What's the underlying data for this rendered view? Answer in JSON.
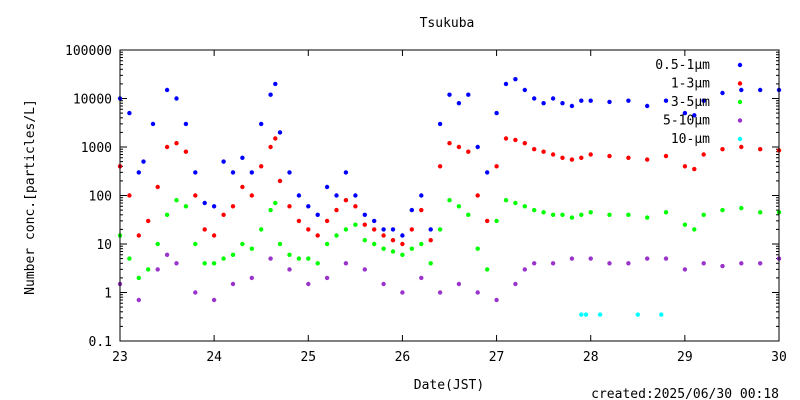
{
  "chart_data": {
    "type": "scatter",
    "title": "Tsukuba",
    "xlabel": "Date(JST)",
    "ylabel": "Number conc.[particles/L]",
    "xscale": "linear",
    "yscale": "log",
    "xlim": [
      23,
      30
    ],
    "ylim": [
      0.1,
      100000
    ],
    "x_ticks": [
      "23",
      "24",
      "25",
      "26",
      "27",
      "28",
      "29",
      "30"
    ],
    "y_ticks": [
      "0.1",
      "1",
      "10",
      "100",
      "1000",
      "10000",
      "100000"
    ],
    "legend_position": "top-right",
    "grid": false,
    "series": [
      {
        "name": "0.5-1μm",
        "color": "#0000ff",
        "x": [
          23.0,
          23.1,
          23.2,
          23.25,
          23.35,
          23.5,
          23.6,
          23.7,
          23.8,
          23.9,
          24.0,
          24.1,
          24.2,
          24.3,
          24.4,
          24.5,
          24.6,
          24.65,
          24.7,
          24.8,
          24.9,
          25.0,
          25.1,
          25.2,
          25.3,
          25.4,
          25.5,
          25.6,
          25.7,
          25.8,
          25.9,
          26.0,
          26.1,
          26.2,
          26.3,
          26.4,
          26.5,
          26.6,
          26.7,
          26.8,
          26.9,
          27.0,
          27.1,
          27.2,
          27.3,
          27.4,
          27.5,
          27.6,
          27.7,
          27.8,
          27.9,
          28.0,
          28.2,
          28.4,
          28.6,
          28.8,
          29.0,
          29.1,
          29.2,
          29.4,
          29.6,
          29.8,
          30.0
        ],
        "y": [
          10000,
          5000,
          300,
          500,
          3000,
          15000,
          10000,
          3000,
          300,
          70,
          60,
          500,
          300,
          600,
          300,
          3000,
          12000,
          20000,
          2000,
          300,
          100,
          60,
          40,
          150,
          100,
          300,
          100,
          40,
          30,
          20,
          20,
          15,
          50,
          100,
          20,
          3000,
          12000,
          8000,
          12000,
          1000,
          300,
          5000,
          20000,
          25000,
          15000,
          10000,
          8000,
          10000,
          8000,
          7000,
          9000,
          9000,
          8500,
          9000,
          7000,
          9000,
          5000,
          4500,
          9000,
          13000,
          15000,
          15000,
          15000
        ]
      },
      {
        "name": "1-3μm",
        "color": "#ff0000",
        "x": [
          23.0,
          23.1,
          23.2,
          23.3,
          23.4,
          23.5,
          23.6,
          23.7,
          23.8,
          23.9,
          24.0,
          24.1,
          24.2,
          24.3,
          24.4,
          24.5,
          24.6,
          24.65,
          24.7,
          24.8,
          24.9,
          25.0,
          25.1,
          25.2,
          25.3,
          25.4,
          25.5,
          25.6,
          25.7,
          25.8,
          25.9,
          26.0,
          26.1,
          26.2,
          26.3,
          26.4,
          26.5,
          26.6,
          26.7,
          26.8,
          26.9,
          27.0,
          27.1,
          27.2,
          27.3,
          27.4,
          27.5,
          27.6,
          27.7,
          27.8,
          27.9,
          28.0,
          28.2,
          28.4,
          28.6,
          28.8,
          29.0,
          29.1,
          29.2,
          29.4,
          29.6,
          29.8,
          30.0
        ],
        "y": [
          400,
          100,
          15,
          30,
          150,
          1000,
          1200,
          800,
          100,
          20,
          15,
          40,
          60,
          150,
          100,
          400,
          1000,
          1500,
          200,
          60,
          30,
          20,
          15,
          30,
          50,
          80,
          60,
          25,
          20,
          15,
          12,
          10,
          20,
          50,
          12,
          400,
          1200,
          1000,
          800,
          100,
          30,
          400,
          1500,
          1400,
          1200,
          900,
          800,
          700,
          600,
          550,
          600,
          700,
          650,
          600,
          550,
          650,
          400,
          350,
          700,
          900,
          1000,
          900,
          850
        ]
      },
      {
        "name": "3-5μm",
        "color": "#00ff00",
        "x": [
          23.0,
          23.1,
          23.2,
          23.3,
          23.4,
          23.5,
          23.6,
          23.7,
          23.8,
          23.9,
          24.0,
          24.1,
          24.2,
          24.3,
          24.4,
          24.5,
          24.6,
          24.65,
          24.7,
          24.8,
          24.9,
          25.0,
          25.1,
          25.2,
          25.3,
          25.4,
          25.5,
          25.6,
          25.7,
          25.8,
          25.9,
          26.0,
          26.1,
          26.2,
          26.3,
          26.4,
          26.5,
          26.6,
          26.7,
          26.8,
          26.9,
          27.0,
          27.1,
          27.2,
          27.3,
          27.4,
          27.5,
          27.6,
          27.7,
          27.8,
          27.9,
          28.0,
          28.2,
          28.4,
          28.6,
          28.8,
          29.0,
          29.1,
          29.2,
          29.4,
          29.6,
          29.8,
          30.0
        ],
        "y": [
          15,
          5,
          2,
          3,
          10,
          40,
          80,
          60,
          10,
          4,
          4,
          5,
          6,
          10,
          8,
          20,
          50,
          70,
          10,
          6,
          5,
          5,
          4,
          10,
          15,
          20,
          25,
          12,
          10,
          8,
          7,
          6,
          8,
          10,
          4,
          20,
          80,
          60,
          40,
          8,
          3,
          30,
          80,
          70,
          60,
          50,
          45,
          40,
          40,
          35,
          40,
          45,
          40,
          40,
          35,
          45,
          25,
          20,
          40,
          50,
          55,
          45,
          45
        ]
      },
      {
        "name": "5-10μm",
        "color": "#9933cc",
        "x": [
          23.0,
          23.2,
          23.4,
          23.5,
          23.6,
          23.8,
          24.0,
          24.2,
          24.4,
          24.6,
          24.8,
          25.0,
          25.2,
          25.4,
          25.6,
          25.8,
          26.0,
          26.2,
          26.4,
          26.6,
          26.8,
          27.0,
          27.2,
          27.3,
          27.4,
          27.6,
          27.8,
          28.0,
          28.2,
          28.4,
          28.6,
          28.8,
          29.0,
          29.2,
          29.4,
          29.6,
          29.8,
          30.0
        ],
        "y": [
          1.5,
          0.7,
          3,
          6,
          4,
          1,
          0.7,
          1.5,
          2,
          5,
          3,
          1.5,
          2,
          4,
          3,
          1.5,
          1,
          2,
          1,
          1.5,
          1,
          0.7,
          1.5,
          3,
          4,
          4,
          5,
          5,
          4,
          4,
          5,
          5,
          3,
          4,
          3.5,
          4,
          4,
          5
        ]
      },
      {
        "name": "10-μm",
        "color": "#00ffff",
        "x": [
          27.9,
          27.95,
          28.1,
          28.5,
          28.75
        ],
        "y": [
          0.35,
          0.35,
          0.35,
          0.35,
          0.35
        ]
      }
    ]
  },
  "footer": {
    "created": "created:2025/06/30 00:18"
  }
}
